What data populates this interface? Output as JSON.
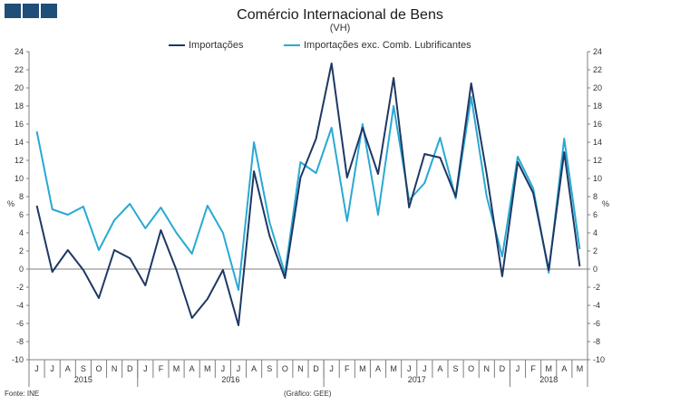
{
  "header": {
    "title": "Comércio Internacional de Bens",
    "subtitle": "(VH)",
    "logo_color": "#1f4e79"
  },
  "footer": {
    "source": "Fonte: INE",
    "credit": "(Gráfico: GEE)"
  },
  "chart_data": {
    "type": "line",
    "title": "Comércio Internacional de Bens",
    "subtitle": "(VH)",
    "ylabel_left": "%",
    "ylabel_right": "%",
    "ylim": [
      -10,
      24
    ],
    "yticks": [
      -10,
      -8,
      -6,
      -4,
      -2,
      0,
      2,
      4,
      6,
      8,
      10,
      12,
      14,
      16,
      18,
      20,
      22,
      24
    ],
    "grid": false,
    "legend_position": "top",
    "months": [
      "J",
      "J",
      "A",
      "S",
      "O",
      "N",
      "D",
      "J",
      "F",
      "M",
      "A",
      "M",
      "J",
      "J",
      "A",
      "S",
      "O",
      "N",
      "D",
      "J",
      "F",
      "M",
      "A",
      "M",
      "J",
      "J",
      "A",
      "S",
      "O",
      "N",
      "D",
      "J",
      "F",
      "M",
      "A",
      "M"
    ],
    "years": [
      {
        "label": "2015",
        "start": 0,
        "end": 6
      },
      {
        "label": "2016",
        "start": 7,
        "end": 18
      },
      {
        "label": "2017",
        "start": 19,
        "end": 30
      },
      {
        "label": "2018",
        "start": 31,
        "end": 35
      }
    ],
    "series": [
      {
        "name": "Importações",
        "color": "#1f3864",
        "values": [
          7.0,
          -0.3,
          2.1,
          -0.1,
          -3.2,
          2.1,
          1.2,
          -1.8,
          4.3,
          -0.1,
          -5.4,
          -3.3,
          -0.1,
          -6.2,
          10.8,
          3.7,
          -1.0,
          10.1,
          14.4,
          22.7,
          10.1,
          15.6,
          10.5,
          21.1,
          6.8,
          12.7,
          12.3,
          8.0,
          20.5,
          10.5,
          -0.8,
          11.8,
          8.4,
          -0.1,
          12.9,
          0.3
        ]
      },
      {
        "name": "Importações exc. Comb. Lubrificantes",
        "color": "#29a9d3",
        "values": [
          15.2,
          6.6,
          6.0,
          6.9,
          2.1,
          5.4,
          7.2,
          4.5,
          6.8,
          4.0,
          1.7,
          7.0,
          4.0,
          -2.3,
          14.0,
          5.2,
          -0.5,
          11.8,
          10.6,
          15.6,
          5.3,
          16.0,
          6.0,
          18.0,
          7.6,
          9.5,
          14.5,
          7.8,
          19.0,
          8.0,
          1.4,
          12.4,
          8.9,
          -0.4,
          14.4,
          2.2
        ]
      }
    ]
  }
}
